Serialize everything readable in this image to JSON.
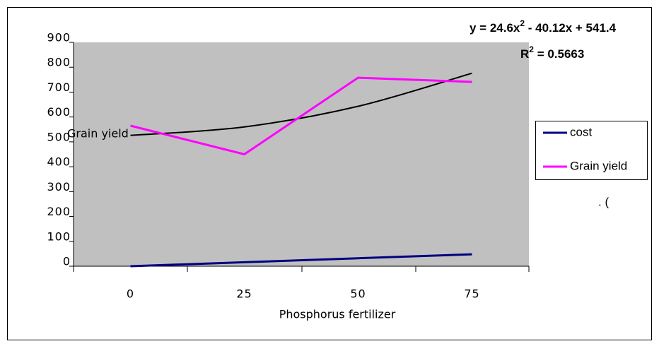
{
  "chart_data": {
    "type": "line",
    "categories": [
      "0",
      "25",
      "50",
      "75"
    ],
    "x_label": "Phosphorus fertilizer",
    "series": [
      {
        "name": "cost",
        "color": "#000080",
        "values": [
          0,
          16,
          32,
          48
        ]
      },
      {
        "name": "Grain yield",
        "color": "#ff00ff",
        "values": [
          565,
          450,
          758,
          741
        ]
      }
    ],
    "trendline": {
      "color": "#000000",
      "values": [
        526,
        560,
        643,
        776
      ]
    },
    "equation": [
      "y = 24.6x",
      "2",
      " - 40.12x + 541.4"
    ],
    "r_squared": [
      "R",
      "2",
      " = 0.5663"
    ],
    "annotations": [
      "Grain yield",
      ". ("
    ],
    "ylim": [
      0,
      900
    ],
    "yticks": [
      0,
      100,
      200,
      300,
      400,
      500,
      600,
      700,
      800,
      900
    ],
    "plot_background": "#c0c0c0"
  }
}
